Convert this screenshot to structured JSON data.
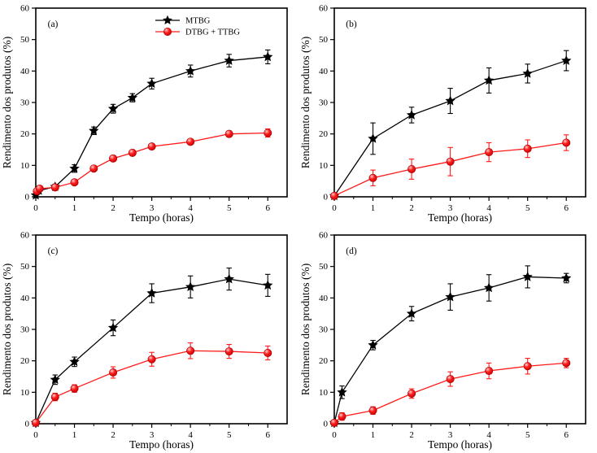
{
  "figure": {
    "background": "#ffffff",
    "axis_color": "#000000",
    "ball_gradient": [
      "#ffd0d0",
      "#ff2020",
      "#cc0000"
    ],
    "ball_stroke": "#a00000"
  },
  "chart_data": [
    {
      "id": "a",
      "type": "line",
      "panel_label": "(a)",
      "xlabel": "Tempo (horas)",
      "ylabel": "Rendimento dos produtos (%)",
      "xlim": [
        0,
        6.5
      ],
      "ylim": [
        0,
        60
      ],
      "xticks": [
        0,
        1,
        2,
        3,
        4,
        5,
        6
      ],
      "yticks": [
        0,
        10,
        20,
        30,
        40,
        50,
        60
      ],
      "x_minor_step": 0.5,
      "grid": false,
      "legend": {
        "show": true,
        "position": "top-center-inside"
      },
      "series": [
        {
          "name": "MTBG",
          "marker": "star",
          "color": "#000000",
          "x": [
            0,
            0.08,
            0.5,
            1,
            1.5,
            2,
            2.5,
            3,
            4,
            5,
            6
          ],
          "y": [
            0.5,
            2.0,
            3.2,
            9.0,
            21.0,
            28.0,
            31.5,
            36.0,
            40.0,
            43.3,
            44.5
          ],
          "err": [
            0.4,
            0.8,
            0.8,
            1.2,
            1.2,
            1.4,
            1.3,
            1.7,
            1.9,
            2.0,
            2.2
          ]
        },
        {
          "name": "DTBG + TTBG",
          "marker": "circle",
          "color": "#ff1a1a",
          "x": [
            0.03,
            0.1,
            0.5,
            1,
            1.5,
            2,
            2.5,
            3,
            4,
            5,
            6
          ],
          "y": [
            1.8,
            2.6,
            3.0,
            4.6,
            9.0,
            12.2,
            14.0,
            16.0,
            17.5,
            20.0,
            20.3
          ],
          "err": [
            0.5,
            0.7,
            0.6,
            0.7,
            0.8,
            0.9,
            0.8,
            0.9,
            0.8,
            0.9,
            1.3
          ]
        }
      ]
    },
    {
      "id": "b",
      "type": "line",
      "panel_label": "(b)",
      "xlabel": "Tempo (horas)",
      "ylabel": "Rendimento dos produtos (%)",
      "xlim": [
        0,
        6.5
      ],
      "ylim": [
        0,
        60
      ],
      "xticks": [
        0,
        1,
        2,
        3,
        4,
        5,
        6
      ],
      "yticks": [
        0,
        10,
        20,
        30,
        40,
        50,
        60
      ],
      "x_minor_step": 0.5,
      "grid": false,
      "legend": {
        "show": false
      },
      "series": [
        {
          "name": "MTBG",
          "marker": "star",
          "color": "#000000",
          "x": [
            0,
            1,
            2,
            3,
            4,
            5,
            6
          ],
          "y": [
            0.3,
            18.5,
            26.0,
            30.5,
            37.0,
            39.2,
            43.3
          ],
          "err": [
            0,
            5.0,
            2.5,
            4.0,
            4.0,
            3.0,
            3.2
          ]
        },
        {
          "name": "DTBG + TTBG",
          "marker": "circle",
          "color": "#ff1a1a",
          "x": [
            0,
            1,
            2,
            3,
            4,
            5,
            6
          ],
          "y": [
            0.3,
            6.0,
            8.8,
            11.2,
            14.2,
            15.3,
            17.2
          ],
          "err": [
            0,
            2.5,
            3.2,
            4.5,
            3.0,
            2.8,
            2.5
          ]
        }
      ]
    },
    {
      "id": "c",
      "type": "line",
      "panel_label": "(c)",
      "xlabel": "Tempo (horas)",
      "ylabel": "Rendimento dos produtos (%)",
      "xlim": [
        0,
        6.5
      ],
      "ylim": [
        0,
        60
      ],
      "xticks": [
        0,
        1,
        2,
        3,
        4,
        5,
        6
      ],
      "yticks": [
        0,
        10,
        20,
        30,
        40,
        50,
        60
      ],
      "x_minor_step": 0.5,
      "grid": false,
      "legend": {
        "show": false
      },
      "series": [
        {
          "name": "MTBG",
          "marker": "star",
          "color": "#000000",
          "x": [
            0,
            0.5,
            1,
            2,
            3,
            4,
            5,
            6
          ],
          "y": [
            0.3,
            14.0,
            19.7,
            30.5,
            41.5,
            43.5,
            46.0,
            44.0
          ],
          "err": [
            0,
            1.5,
            1.5,
            2.5,
            3.0,
            3.5,
            3.5,
            3.5
          ]
        },
        {
          "name": "DTBG + TTBG",
          "marker": "circle",
          "color": "#ff1a1a",
          "x": [
            0,
            0.5,
            1,
            2,
            3,
            4,
            5,
            6
          ],
          "y": [
            0.3,
            8.5,
            11.2,
            16.3,
            20.5,
            23.2,
            23.0,
            22.5
          ],
          "err": [
            0,
            1.2,
            1.2,
            1.8,
            2.2,
            2.5,
            2.2,
            2.2
          ]
        }
      ]
    },
    {
      "id": "d",
      "type": "line",
      "panel_label": "(d)",
      "xlabel": "Tempo (horas)",
      "ylabel": "Rendimento dos produtos (%)",
      "xlim": [
        0,
        6.5
      ],
      "ylim": [
        0,
        60
      ],
      "xticks": [
        0,
        1,
        2,
        3,
        4,
        5,
        6
      ],
      "yticks": [
        0,
        10,
        20,
        30,
        40,
        50,
        60
      ],
      "x_minor_step": 0.5,
      "grid": false,
      "legend": {
        "show": false
      },
      "series": [
        {
          "name": "MTBG",
          "marker": "star",
          "color": "#000000",
          "x": [
            0,
            0.2,
            1,
            2,
            3,
            4,
            5,
            6
          ],
          "y": [
            0.3,
            10.0,
            25.0,
            35.0,
            40.3,
            43.2,
            46.7,
            46.3
          ],
          "err": [
            0,
            2.0,
            1.5,
            2.3,
            4.2,
            4.2,
            3.5,
            1.5
          ]
        },
        {
          "name": "DTBG + TTBG",
          "marker": "circle",
          "color": "#ff1a1a",
          "x": [
            0,
            0.2,
            1,
            2,
            3,
            4,
            5,
            6
          ],
          "y": [
            0.3,
            2.3,
            4.2,
            9.6,
            14.2,
            16.8,
            18.3,
            19.3
          ],
          "err": [
            0,
            1.2,
            1.2,
            1.5,
            2.3,
            2.5,
            2.5,
            1.5
          ]
        }
      ]
    }
  ],
  "legend_labels": [
    "MTBG",
    "DTBG + TTBG"
  ]
}
